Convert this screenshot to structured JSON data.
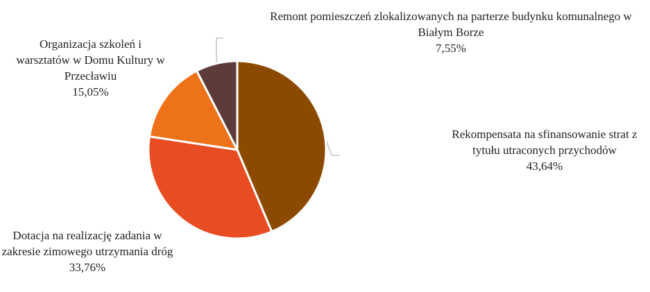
{
  "chart_data": {
    "type": "pie",
    "categories": [
      "Rekompensata na sfinansowanie strat z tytułu utraconych przychodów",
      "Dotacja na realizację zadania w zakresie zimowego utrzymania dróg",
      "Organizacja szkoleń i warsztatów w Domu Kultury w Przecławiu",
      "Remont pomieszczeń zlokalizowanych na parterze budynku komunalnego w Białym Borze"
    ],
    "values": [
      43.64,
      33.76,
      15.05,
      7.55
    ],
    "value_labels": [
      "43,64%",
      "33,76%",
      "15,05%",
      "7,55%"
    ],
    "colors": [
      "#8b4a00",
      "#e84c22",
      "#ee7219",
      "#5e3b3b"
    ]
  }
}
